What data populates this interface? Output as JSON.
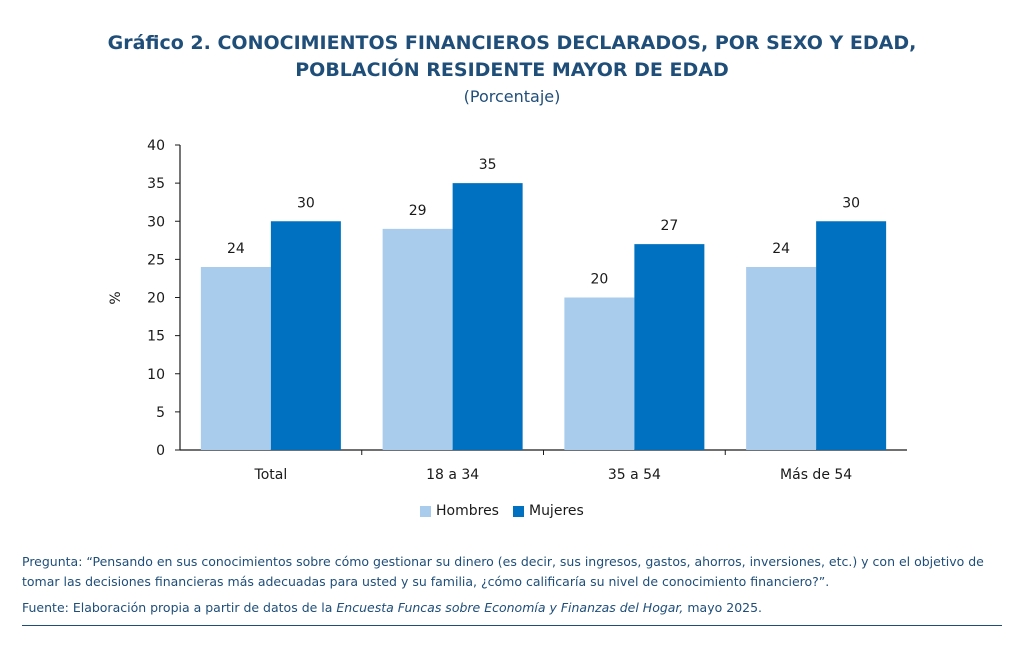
{
  "header": {
    "title_line1": "Gráfico 2. CONOCIMIENTOS FINANCIEROS DECLARADOS, POR SEXO Y EDAD,",
    "title_line2": "POBLACIÓN RESIDENTE MAYOR DE EDAD",
    "subtitle": "(Porcentaje)"
  },
  "chart_data": {
    "type": "bar",
    "categories": [
      "Total",
      "18 a 34",
      "35 a 54",
      "Más de 54"
    ],
    "series": [
      {
        "name": "Hombres",
        "values": [
          24,
          29,
          20,
          24
        ],
        "labels": [
          "24",
          "29",
          "20",
          "24"
        ],
        "color": "#a9ccec"
      },
      {
        "name": "Mujeres",
        "values": [
          30,
          35,
          27,
          30
        ],
        "labels": [
          "30",
          "35",
          "27",
          "30"
        ],
        "color": "#0070c0"
      }
    ],
    "ylabel": "%",
    "ylim": [
      0,
      40
    ],
    "yticks": [
      "0",
      "5",
      "10",
      "15",
      "20",
      "25",
      "30",
      "35",
      "40"
    ],
    "grid": false,
    "legend_position": "bottom"
  },
  "footer": {
    "question": "Pregunta: “Pensando en sus conocimientos sobre cómo gestionar su dinero (es decir, sus ingresos, gastos, ahorros, inversiones, etc.) y con el objetivo de tomar las decisiones financieras más adecuadas para usted y su familia, ¿cómo calificaría su nivel de conocimiento financiero?”.",
    "source_prefix": "Fuente: Elaboración propia a partir de datos de la ",
    "source_title": "Encuesta Funcas sobre Economía y Finanzas del Hogar,",
    "source_suffix": " mayo 2025."
  }
}
